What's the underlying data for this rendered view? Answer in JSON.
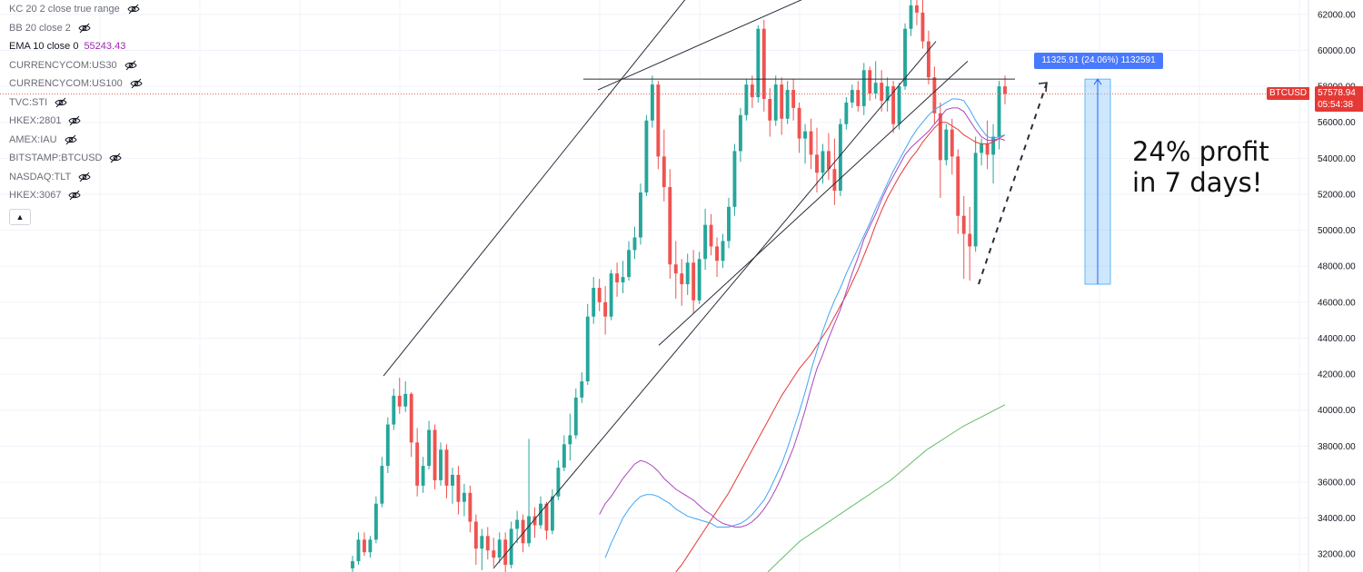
{
  "legend": {
    "items": [
      {
        "label": "KC 20 2 close true range",
        "active": false
      },
      {
        "label": "BB 20 close 2",
        "active": false
      },
      {
        "label": "EMA 10 close 0",
        "value": "55243.43",
        "active": true
      },
      {
        "label": "CURRENCYCOM:US30",
        "active": false
      },
      {
        "label": "CURRENCYCOM:US100",
        "active": false
      },
      {
        "label": "TVC:STI",
        "active": false
      },
      {
        "label": "HKEX:2801",
        "active": false
      },
      {
        "label": "AMEX:IAU",
        "active": false
      },
      {
        "label": "BITSTAMP:BTCUSD",
        "active": false
      },
      {
        "label": "NASDAQ:TLT",
        "active": false
      },
      {
        "label": "HKEX:3067",
        "active": false
      }
    ],
    "collapse_glyph": "▲"
  },
  "price_tag": {
    "symbol": "BTCUSD",
    "price": "57578.94",
    "countdown": "05:54:38"
  },
  "measure": {
    "label": "11325.91 (24.06%) 1132591",
    "from_price": 47000,
    "to_price": 58400
  },
  "annotation": {
    "line1": "24% profit",
    "line2": "in 7 days!"
  },
  "chart_data": {
    "type": "candlestick",
    "title": "",
    "ylim": [
      31000,
      62800
    ],
    "yticks": [
      32000,
      34000,
      36000,
      38000,
      40000,
      42000,
      44000,
      46000,
      48000,
      50000,
      52000,
      54000,
      56000,
      58000,
      60000,
      62000
    ],
    "ytick_labels": [
      "32000.00",
      "34000.00",
      "36000.00",
      "38000.00",
      "40000.00",
      "42000.00",
      "44000.00",
      "46000.00",
      "48000.00",
      "50000.00",
      "52000.00",
      "54000.00",
      "56000.00",
      "58000.00",
      "60000.00",
      "62000.00"
    ],
    "colors": {
      "up": "#26a69a",
      "down": "#ef5350",
      "ema_fast": "#ab47bc",
      "ema_mid": "#42a5f5",
      "ema_slow": "#e53935",
      "ema_long": "#66bb6a",
      "current_price_line": "#ef5350",
      "measure_fill": "#90caf9",
      "measure_label": "#2962ff"
    },
    "current_price": 57578.94,
    "horizontal_level": 58400,
    "candles": [
      [
        31200,
        31900,
        30800,
        31600
      ],
      [
        31600,
        33200,
        31400,
        32800
      ],
      [
        32800,
        33200,
        31900,
        32100
      ],
      [
        32100,
        33000,
        31800,
        32800
      ],
      [
        32800,
        35200,
        32600,
        34800
      ],
      [
        34800,
        37400,
        34600,
        36900
      ],
      [
        36900,
        39600,
        36500,
        39200
      ],
      [
        39200,
        41200,
        38900,
        40800
      ],
      [
        40800,
        41800,
        39800,
        40200
      ],
      [
        40200,
        41600,
        39900,
        40900
      ],
      [
        40900,
        41000,
        37400,
        38200
      ],
      [
        38200,
        39000,
        35200,
        35800
      ],
      [
        35800,
        37400,
        35400,
        36900
      ],
      [
        36900,
        39400,
        36700,
        38900
      ],
      [
        38900,
        39200,
        35600,
        36100
      ],
      [
        36100,
        38200,
        35800,
        37800
      ],
      [
        37800,
        38100,
        35100,
        35800
      ],
      [
        35800,
        36800,
        34800,
        36400
      ],
      [
        36400,
        36900,
        34200,
        34900
      ],
      [
        34900,
        35900,
        34100,
        35400
      ],
      [
        35400,
        35800,
        33200,
        33800
      ],
      [
        33800,
        34200,
        31400,
        32300
      ],
      [
        32300,
        33400,
        31100,
        33000
      ],
      [
        33000,
        33500,
        31700,
        32200
      ],
      [
        32200,
        32900,
        31300,
        31800
      ],
      [
        31800,
        33200,
        31500,
        32800
      ],
      [
        32800,
        33200,
        31000,
        31400
      ],
      [
        31400,
        33800,
        31200,
        33400
      ],
      [
        33400,
        34400,
        32600,
        33900
      ],
      [
        33900,
        34200,
        32100,
        32600
      ],
      [
        32600,
        38400,
        32400,
        34100
      ],
      [
        34100,
        34600,
        32900,
        33600
      ],
      [
        33600,
        35200,
        33400,
        34800
      ],
      [
        34800,
        34900,
        32800,
        33300
      ],
      [
        33300,
        35600,
        33100,
        35200
      ],
      [
        35200,
        37200,
        35000,
        36800
      ],
      [
        36800,
        38600,
        36600,
        38100
      ],
      [
        38100,
        39800,
        37200,
        38600
      ],
      [
        38600,
        41200,
        38400,
        40700
      ],
      [
        40700,
        42100,
        40400,
        41600
      ],
      [
        41600,
        45900,
        41400,
        45200
      ],
      [
        45200,
        47400,
        44800,
        46800
      ],
      [
        46800,
        47300,
        45500,
        46000
      ],
      [
        46000,
        46900,
        44200,
        45200
      ],
      [
        45200,
        47800,
        45000,
        47600
      ],
      [
        47600,
        48200,
        46300,
        47100
      ],
      [
        47100,
        48300,
        46500,
        47400
      ],
      [
        47400,
        49400,
        47200,
        48900
      ],
      [
        48900,
        50200,
        48400,
        49600
      ],
      [
        49600,
        52600,
        49200,
        52100
      ],
      [
        52100,
        56400,
        51900,
        56100
      ],
      [
        56100,
        58600,
        55700,
        58100
      ],
      [
        58100,
        58300,
        53400,
        54100
      ],
      [
        54100,
        55600,
        51600,
        52400
      ],
      [
        52400,
        53400,
        47300,
        48100
      ],
      [
        48100,
        49400,
        46200,
        47600
      ],
      [
        47600,
        48400,
        45800,
        47000
      ],
      [
        47000,
        48700,
        46400,
        48200
      ],
      [
        48200,
        48900,
        45400,
        46100
      ],
      [
        46100,
        48800,
        45900,
        48400
      ],
      [
        48400,
        51200,
        47800,
        50300
      ],
      [
        50300,
        50900,
        48600,
        49100
      ],
      [
        49100,
        49600,
        47400,
        48300
      ],
      [
        48300,
        49800,
        47900,
        49400
      ],
      [
        49400,
        51800,
        49000,
        51300
      ],
      [
        51300,
        54800,
        50800,
        54400
      ],
      [
        54400,
        56800,
        53800,
        56400
      ],
      [
        56400,
        58400,
        56100,
        58100
      ],
      [
        58100,
        58600,
        56800,
        57400
      ],
      [
        57400,
        61400,
        57100,
        61200
      ],
      [
        61200,
        61700,
        56600,
        57300
      ],
      [
        57300,
        57900,
        55200,
        56100
      ],
      [
        56100,
        58600,
        55800,
        58100
      ],
      [
        58100,
        58500,
        55300,
        56200
      ],
      [
        56200,
        58300,
        55900,
        57800
      ],
      [
        57800,
        58400,
        56100,
        56800
      ],
      [
        56800,
        57100,
        54300,
        55100
      ],
      [
        55100,
        55900,
        53700,
        55500
      ],
      [
        55500,
        56200,
        53400,
        54200
      ],
      [
        54200,
        55700,
        52100,
        53200
      ],
      [
        53200,
        54800,
        52600,
        54400
      ],
      [
        54400,
        55400,
        52800,
        53400
      ],
      [
        53400,
        55100,
        51400,
        52200
      ],
      [
        52200,
        56200,
        51900,
        55900
      ],
      [
        55900,
        57400,
        55600,
        57100
      ],
      [
        57100,
        58100,
        56800,
        57800
      ],
      [
        57800,
        58300,
        56600,
        56900
      ],
      [
        56900,
        59300,
        56400,
        58900
      ],
      [
        58900,
        59100,
        57200,
        57600
      ],
      [
        57600,
        59400,
        57300,
        58200
      ],
      [
        58200,
        58900,
        56600,
        57200
      ],
      [
        57200,
        58500,
        56600,
        58000
      ],
      [
        58000,
        58300,
        55400,
        55900
      ],
      [
        55900,
        58200,
        55600,
        58000
      ],
      [
        58000,
        61500,
        57800,
        61200
      ],
      [
        61200,
        62900,
        60800,
        62500
      ],
      [
        62500,
        63500,
        61400,
        62100
      ],
      [
        62100,
        62800,
        60100,
        60500
      ],
      [
        60500,
        61100,
        58100,
        58500
      ],
      [
        58500,
        59100,
        55900,
        56500
      ],
      [
        56500,
        57100,
        51800,
        53900
      ],
      [
        53900,
        55900,
        53600,
        55600
      ],
      [
        55600,
        56200,
        53100,
        54100
      ],
      [
        54100,
        54500,
        49800,
        50800
      ],
      [
        50800,
        51900,
        47300,
        49800
      ],
      [
        49800,
        51300,
        47200,
        49100
      ],
      [
        49100,
        55200,
        48800,
        54300
      ],
      [
        54300,
        55100,
        53600,
        54800
      ],
      [
        54800,
        56100,
        53400,
        54200
      ],
      [
        54200,
        55900,
        52600,
        55200
      ],
      [
        55200,
        58300,
        54500,
        58000
      ],
      [
        58000,
        58600,
        57000,
        57579
      ]
    ],
    "ema_fast": [
      34200,
      34800,
      35200,
      35700,
      36200,
      36600,
      37000,
      37200,
      37100,
      36900,
      36600,
      36200,
      35900,
      35600,
      35400,
      35200,
      35000,
      34700,
      34400,
      34200,
      33900,
      33700,
      33600,
      33500,
      33500,
      33600,
      33800,
      34100,
      34500,
      35000,
      35600,
      36300,
      37100,
      37900,
      38900,
      40000,
      41200,
      42300,
      43100,
      44000,
      44800,
      45600,
      46600,
      47600,
      48500,
      49500,
      50200,
      50900,
      51700,
      52400,
      53000,
      53600,
      54200,
      54600,
      54900,
      55200,
      55500,
      55900,
      56300,
      56700,
      56800,
      56800,
      56600,
      56100,
      55600,
      55200,
      55000,
      55000,
      55100,
      55000
    ],
    "ema_mid": [
      31800,
      32600,
      33300,
      34000,
      34500,
      34900,
      35200,
      35300,
      35300,
      35200,
      35000,
      34800,
      34500,
      34300,
      34100,
      34000,
      33900,
      33800,
      33700,
      33500,
      33500,
      33500,
      33600,
      33700,
      33900,
      34200,
      34600,
      35000,
      35600,
      36300,
      37000,
      37900,
      38900,
      39900,
      41000,
      42200,
      43300,
      44400,
      45300,
      46100,
      46800,
      47600,
      48300,
      49000,
      49700,
      50400,
      51200,
      51900,
      52600,
      53300,
      53900,
      54500,
      55100,
      55600,
      56000,
      56400,
      56700,
      56900,
      57100,
      57300,
      57300,
      57200,
      56700,
      56100,
      55600,
      55200,
      55100,
      55200,
      55300
    ],
    "ema_slow": [
      31000,
      31400,
      31900,
      32400,
      32900,
      33400,
      33900,
      34400,
      34900,
      35400,
      36000,
      36600,
      37200,
      37800,
      38400,
      39000,
      39600,
      40200,
      40800,
      41300,
      41800,
      42300,
      42700,
      43100,
      43600,
      44100,
      44600,
      45200,
      45800,
      46400,
      47100,
      47800,
      48600,
      49400,
      50300,
      51100,
      51800,
      52400,
      53000,
      53500,
      54000,
      54400,
      54900,
      55300,
      55700,
      56000,
      56000,
      55800,
      55600,
      55300,
      55100,
      54900,
      54800,
      54800,
      54900,
      55100,
      55300
    ]
  }
}
